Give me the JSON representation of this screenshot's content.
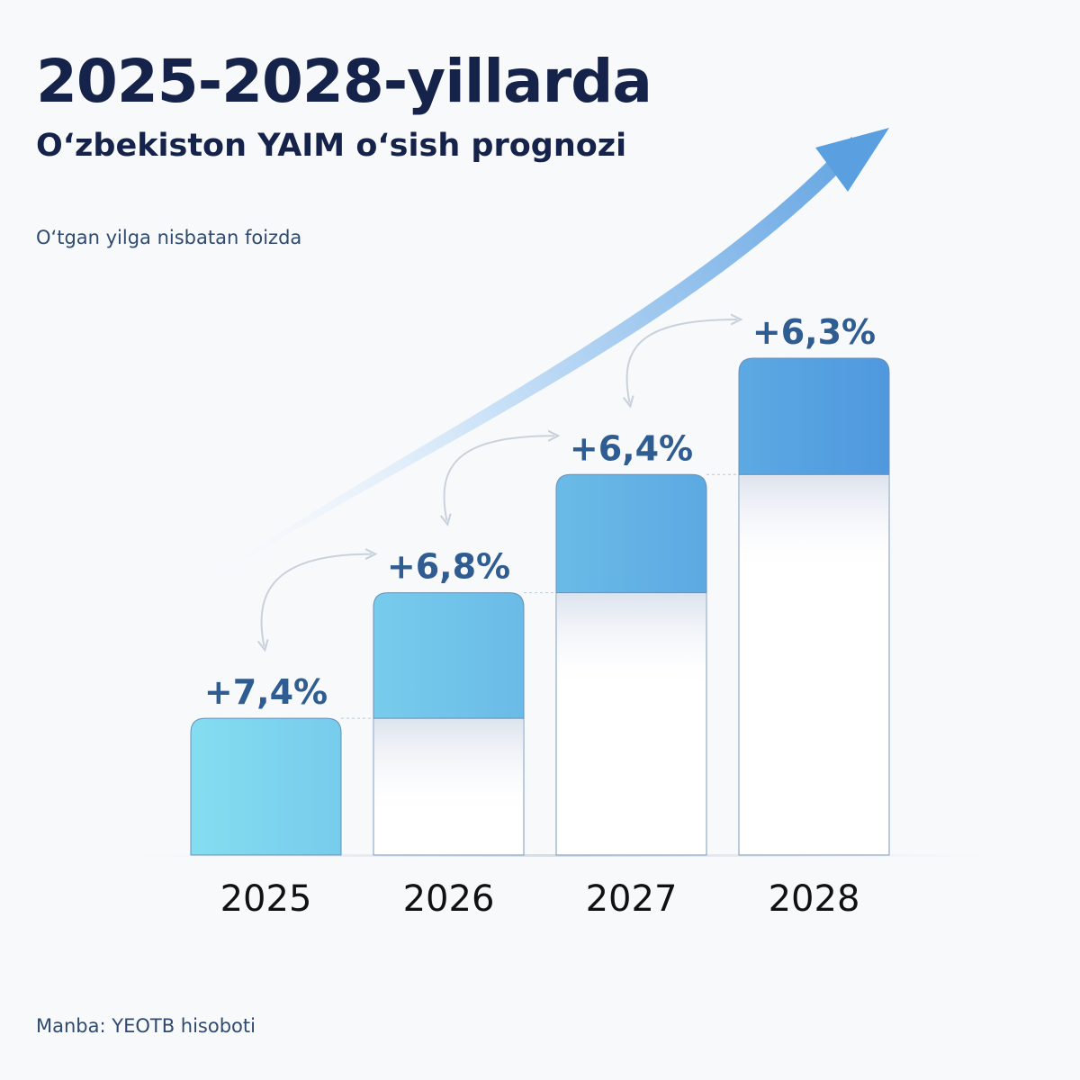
{
  "title": "2025-2028-yillarda",
  "subtitle": "O‘zbekiston YAIM o‘sish prognozi",
  "unit_note": "O‘tgan yilga nisbatan foizda",
  "source": "Manba: YEOTB hisoboti",
  "colors": {
    "title": "#15224a",
    "label": "#2f5d92",
    "bar_light": "#84ddf0",
    "bar_dark": "#4f98de",
    "arrow": "#5a9fe0"
  },
  "chart_data": {
    "type": "bar",
    "categories": [
      "2025",
      "2026",
      "2027",
      "2028"
    ],
    "values": [
      7.4,
      6.8,
      6.4,
      6.3
    ],
    "data_labels": [
      "+7,4%",
      "+6,8%",
      "+6,4%",
      "+6,3%"
    ],
    "stacked_display": "cumulative",
    "title": "2025-2028-yillarda",
    "subtitle": "O‘zbekiston YAIM o‘sish prognozi",
    "ylabel": "O‘tgan yilga nisbatan foizda",
    "grid": false,
    "legend": "none"
  }
}
